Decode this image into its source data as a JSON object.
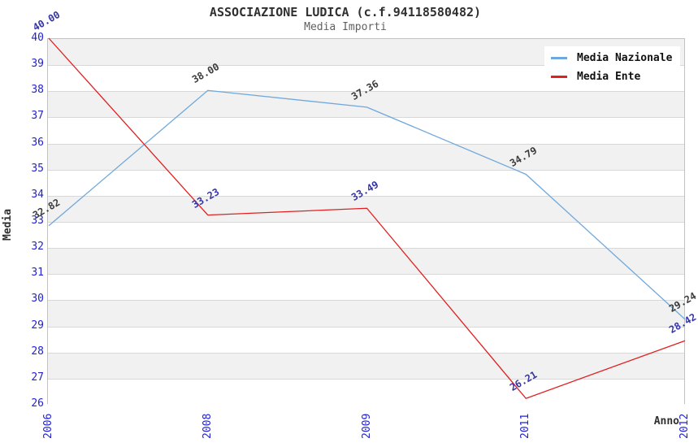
{
  "header": {
    "title": "ASSOCIAZIONE LUDICA (c.f.94118580482)",
    "subtitle": "Media Importi"
  },
  "chart_data": {
    "type": "line",
    "title": "ASSOCIAZIONE LUDICA (c.f.94118580482)",
    "subtitle": "Media Importi",
    "xlabel": "Anno",
    "ylabel": "Media",
    "categories": [
      "2006",
      "2008",
      "2009",
      "2011",
      "2012"
    ],
    "series": [
      {
        "name": "Media Nazionale",
        "values": [
          32.82,
          38.0,
          37.36,
          34.79,
          29.24
        ],
        "labels": [
          "32.82",
          "38.00",
          "37.36",
          "34.79",
          "29.24"
        ],
        "color": "#6fa8dc",
        "label_color": "#3b3b3b"
      },
      {
        "name": "Media Ente",
        "values": [
          40.0,
          33.23,
          33.49,
          26.21,
          28.42
        ],
        "labels": [
          "40.00",
          "33.23",
          "33.49",
          "26.21",
          "28.42"
        ],
        "color": "#e02020",
        "label_color": "#3434a8"
      }
    ],
    "ylim": [
      26,
      40
    ],
    "yticks": [
      26,
      27,
      28,
      29,
      30,
      31,
      32,
      33,
      34,
      35,
      36,
      37,
      38,
      39,
      40
    ],
    "grid": "horizontal gridlines with alternating gray/white bands",
    "legend_position": "top-right",
    "tick_label_color": "#2323cc",
    "band_color": "#f1f1f1",
    "grid_color": "#d8d8d8"
  }
}
